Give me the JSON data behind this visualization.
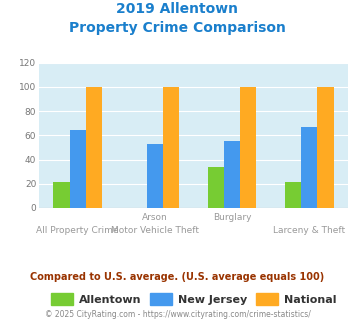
{
  "title_line1": "2019 Allentown",
  "title_line2": "Property Crime Comparison",
  "title_color": "#1a7fcc",
  "groups": [
    {
      "label": "All Property Crime",
      "allentown": 21,
      "new_jersey": 64,
      "national": 100
    },
    {
      "label": "Arson / Motor Vehicle Theft",
      "allentown": 0,
      "new_jersey": 53,
      "national": 100
    },
    {
      "label": "Burglary",
      "allentown": 34,
      "new_jersey": 55,
      "national": 100
    },
    {
      "label": "Larceny & Theft",
      "allentown": 21,
      "new_jersey": 67,
      "national": 100
    }
  ],
  "allentown_color": "#77cc33",
  "new_jersey_color": "#4499ee",
  "national_color": "#ffaa22",
  "plot_bg_color": "#d8edf5",
  "ylim": [
    0,
    120
  ],
  "yticks": [
    0,
    20,
    40,
    60,
    80,
    100,
    120
  ],
  "legend_labels": [
    "Allentown",
    "New Jersey",
    "National"
  ],
  "top_xlabels": [
    "",
    "Arson",
    "Burglary",
    ""
  ],
  "bottom_xlabels": [
    "All Property Crime",
    "Motor Vehicle Theft",
    "",
    "Larceny & Theft"
  ],
  "footnote1": "Compared to U.S. average. (U.S. average equals 100)",
  "footnote2": "© 2025 CityRating.com - https://www.cityrating.com/crime-statistics/",
  "footnote1_color": "#993300",
  "footnote2_color": "#888888"
}
